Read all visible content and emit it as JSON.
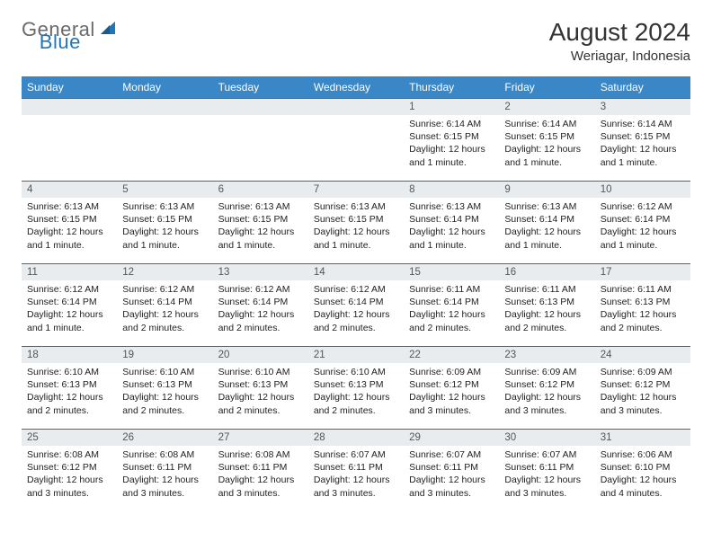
{
  "logo": {
    "textA": "General",
    "textB": "Blue"
  },
  "title": "August 2024",
  "location": "Weriagar, Indonesia",
  "colors": {
    "headerBg": "#3a87c7",
    "headerText": "#ffffff",
    "dayNumBg": "#e9ecef",
    "rowBorder": "#2c6fa8"
  },
  "dayHeaders": [
    "Sunday",
    "Monday",
    "Tuesday",
    "Wednesday",
    "Thursday",
    "Friday",
    "Saturday"
  ],
  "weeks": [
    [
      {
        "blank": true
      },
      {
        "blank": true
      },
      {
        "blank": true
      },
      {
        "blank": true
      },
      {
        "num": "1",
        "sunrise": "Sunrise: 6:14 AM",
        "sunset": "Sunset: 6:15 PM",
        "daylight": "Daylight: 12 hours and 1 minute."
      },
      {
        "num": "2",
        "sunrise": "Sunrise: 6:14 AM",
        "sunset": "Sunset: 6:15 PM",
        "daylight": "Daylight: 12 hours and 1 minute."
      },
      {
        "num": "3",
        "sunrise": "Sunrise: 6:14 AM",
        "sunset": "Sunset: 6:15 PM",
        "daylight": "Daylight: 12 hours and 1 minute."
      }
    ],
    [
      {
        "num": "4",
        "sunrise": "Sunrise: 6:13 AM",
        "sunset": "Sunset: 6:15 PM",
        "daylight": "Daylight: 12 hours and 1 minute."
      },
      {
        "num": "5",
        "sunrise": "Sunrise: 6:13 AM",
        "sunset": "Sunset: 6:15 PM",
        "daylight": "Daylight: 12 hours and 1 minute."
      },
      {
        "num": "6",
        "sunrise": "Sunrise: 6:13 AM",
        "sunset": "Sunset: 6:15 PM",
        "daylight": "Daylight: 12 hours and 1 minute."
      },
      {
        "num": "7",
        "sunrise": "Sunrise: 6:13 AM",
        "sunset": "Sunset: 6:15 PM",
        "daylight": "Daylight: 12 hours and 1 minute."
      },
      {
        "num": "8",
        "sunrise": "Sunrise: 6:13 AM",
        "sunset": "Sunset: 6:14 PM",
        "daylight": "Daylight: 12 hours and 1 minute."
      },
      {
        "num": "9",
        "sunrise": "Sunrise: 6:13 AM",
        "sunset": "Sunset: 6:14 PM",
        "daylight": "Daylight: 12 hours and 1 minute."
      },
      {
        "num": "10",
        "sunrise": "Sunrise: 6:12 AM",
        "sunset": "Sunset: 6:14 PM",
        "daylight": "Daylight: 12 hours and 1 minute."
      }
    ],
    [
      {
        "num": "11",
        "sunrise": "Sunrise: 6:12 AM",
        "sunset": "Sunset: 6:14 PM",
        "daylight": "Daylight: 12 hours and 1 minute."
      },
      {
        "num": "12",
        "sunrise": "Sunrise: 6:12 AM",
        "sunset": "Sunset: 6:14 PM",
        "daylight": "Daylight: 12 hours and 2 minutes."
      },
      {
        "num": "13",
        "sunrise": "Sunrise: 6:12 AM",
        "sunset": "Sunset: 6:14 PM",
        "daylight": "Daylight: 12 hours and 2 minutes."
      },
      {
        "num": "14",
        "sunrise": "Sunrise: 6:12 AM",
        "sunset": "Sunset: 6:14 PM",
        "daylight": "Daylight: 12 hours and 2 minutes."
      },
      {
        "num": "15",
        "sunrise": "Sunrise: 6:11 AM",
        "sunset": "Sunset: 6:14 PM",
        "daylight": "Daylight: 12 hours and 2 minutes."
      },
      {
        "num": "16",
        "sunrise": "Sunrise: 6:11 AM",
        "sunset": "Sunset: 6:13 PM",
        "daylight": "Daylight: 12 hours and 2 minutes."
      },
      {
        "num": "17",
        "sunrise": "Sunrise: 6:11 AM",
        "sunset": "Sunset: 6:13 PM",
        "daylight": "Daylight: 12 hours and 2 minutes."
      }
    ],
    [
      {
        "num": "18",
        "sunrise": "Sunrise: 6:10 AM",
        "sunset": "Sunset: 6:13 PM",
        "daylight": "Daylight: 12 hours and 2 minutes."
      },
      {
        "num": "19",
        "sunrise": "Sunrise: 6:10 AM",
        "sunset": "Sunset: 6:13 PM",
        "daylight": "Daylight: 12 hours and 2 minutes."
      },
      {
        "num": "20",
        "sunrise": "Sunrise: 6:10 AM",
        "sunset": "Sunset: 6:13 PM",
        "daylight": "Daylight: 12 hours and 2 minutes."
      },
      {
        "num": "21",
        "sunrise": "Sunrise: 6:10 AM",
        "sunset": "Sunset: 6:13 PM",
        "daylight": "Daylight: 12 hours and 2 minutes."
      },
      {
        "num": "22",
        "sunrise": "Sunrise: 6:09 AM",
        "sunset": "Sunset: 6:12 PM",
        "daylight": "Daylight: 12 hours and 3 minutes."
      },
      {
        "num": "23",
        "sunrise": "Sunrise: 6:09 AM",
        "sunset": "Sunset: 6:12 PM",
        "daylight": "Daylight: 12 hours and 3 minutes."
      },
      {
        "num": "24",
        "sunrise": "Sunrise: 6:09 AM",
        "sunset": "Sunset: 6:12 PM",
        "daylight": "Daylight: 12 hours and 3 minutes."
      }
    ],
    [
      {
        "num": "25",
        "sunrise": "Sunrise: 6:08 AM",
        "sunset": "Sunset: 6:12 PM",
        "daylight": "Daylight: 12 hours and 3 minutes."
      },
      {
        "num": "26",
        "sunrise": "Sunrise: 6:08 AM",
        "sunset": "Sunset: 6:11 PM",
        "daylight": "Daylight: 12 hours and 3 minutes."
      },
      {
        "num": "27",
        "sunrise": "Sunrise: 6:08 AM",
        "sunset": "Sunset: 6:11 PM",
        "daylight": "Daylight: 12 hours and 3 minutes."
      },
      {
        "num": "28",
        "sunrise": "Sunrise: 6:07 AM",
        "sunset": "Sunset: 6:11 PM",
        "daylight": "Daylight: 12 hours and 3 minutes."
      },
      {
        "num": "29",
        "sunrise": "Sunrise: 6:07 AM",
        "sunset": "Sunset: 6:11 PM",
        "daylight": "Daylight: 12 hours and 3 minutes."
      },
      {
        "num": "30",
        "sunrise": "Sunrise: 6:07 AM",
        "sunset": "Sunset: 6:11 PM",
        "daylight": "Daylight: 12 hours and 3 minutes."
      },
      {
        "num": "31",
        "sunrise": "Sunrise: 6:06 AM",
        "sunset": "Sunset: 6:10 PM",
        "daylight": "Daylight: 12 hours and 4 minutes."
      }
    ]
  ]
}
